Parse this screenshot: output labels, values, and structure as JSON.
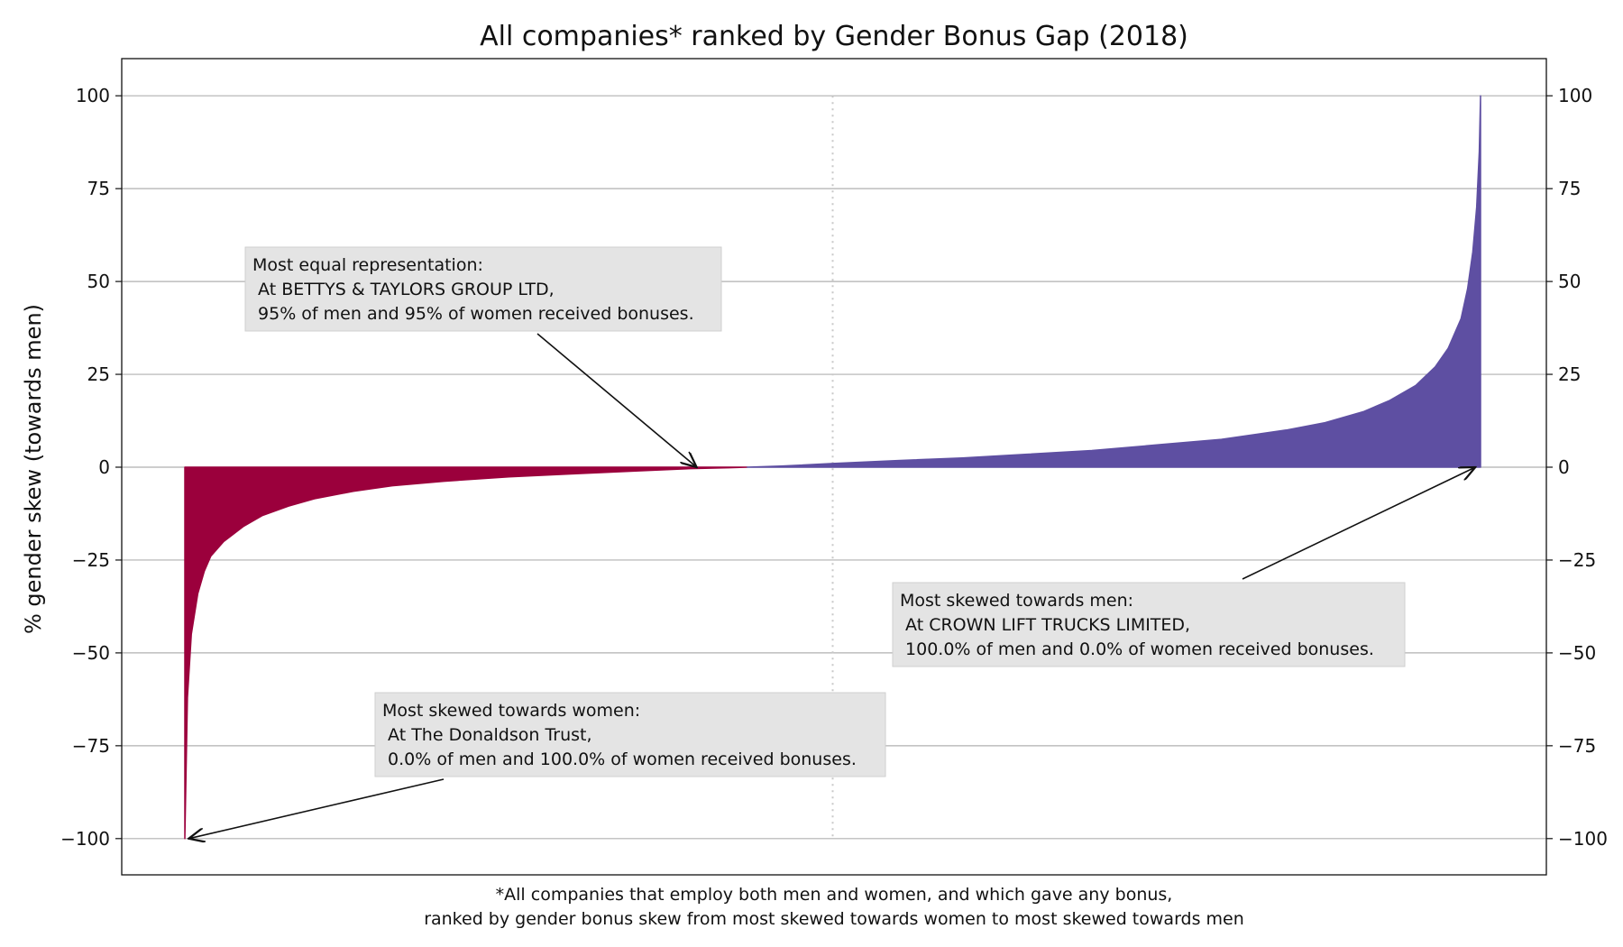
{
  "chart_data": {
    "type": "bar",
    "title": "All companies* ranked by Gender Bonus Gap (2018)",
    "ylabel": "% gender skew (towards men)",
    "xlabel": "",
    "footnote_lines": [
      "*All companies that employ both men and women, and which gave any bonus,",
      "ranked by gender bonus skew from most skewed towards women to most skewed towards men"
    ],
    "ylim": [
      -110,
      110
    ],
    "yticks": [
      100,
      75,
      50,
      25,
      0,
      -25,
      -50,
      -75,
      -100
    ],
    "ytick_labels": [
      "100",
      "75",
      "50",
      "25",
      "0",
      "−25",
      "−50",
      "−75",
      "−100"
    ],
    "ytick_labels_right": [
      "100",
      "75",
      "50",
      "25",
      "0",
      "−25",
      "−50",
      "−75",
      "−100"
    ],
    "grid": "horizontal",
    "x_index_range": [
      0,
      1
    ],
    "median_marker_x": 0.5,
    "series": [
      {
        "color": "#9b003c",
        "sign": "negative",
        "points": [
          {
            "x": 0.0,
            "y": -100
          },
          {
            "x": 0.002,
            "y": -62
          },
          {
            "x": 0.005,
            "y": -45
          },
          {
            "x": 0.01,
            "y": -34
          },
          {
            "x": 0.015,
            "y": -28
          },
          {
            "x": 0.02,
            "y": -24
          },
          {
            "x": 0.03,
            "y": -20
          },
          {
            "x": 0.045,
            "y": -16
          },
          {
            "x": 0.06,
            "y": -13
          },
          {
            "x": 0.08,
            "y": -10.5
          },
          {
            "x": 0.1,
            "y": -8.5
          },
          {
            "x": 0.13,
            "y": -6.5
          },
          {
            "x": 0.16,
            "y": -5
          },
          {
            "x": 0.2,
            "y": -3.8
          },
          {
            "x": 0.25,
            "y": -2.6
          },
          {
            "x": 0.3,
            "y": -1.8
          },
          {
            "x": 0.35,
            "y": -1.0
          },
          {
            "x": 0.39,
            "y": -0.4
          },
          {
            "x": 0.42,
            "y": -0.15
          },
          {
            "x": 0.434,
            "y": 0
          }
        ]
      },
      {
        "color": "#5e4fa2",
        "sign": "positive",
        "points": [
          {
            "x": 0.434,
            "y": 0
          },
          {
            "x": 0.46,
            "y": 0.3
          },
          {
            "x": 0.5,
            "y": 1
          },
          {
            "x": 0.55,
            "y": 1.8
          },
          {
            "x": 0.6,
            "y": 2.5
          },
          {
            "x": 0.65,
            "y": 3.5
          },
          {
            "x": 0.7,
            "y": 4.5
          },
          {
            "x": 0.75,
            "y": 6
          },
          {
            "x": 0.8,
            "y": 7.5
          },
          {
            "x": 0.85,
            "y": 10
          },
          {
            "x": 0.88,
            "y": 12
          },
          {
            "x": 0.91,
            "y": 15
          },
          {
            "x": 0.93,
            "y": 18
          },
          {
            "x": 0.95,
            "y": 22
          },
          {
            "x": 0.965,
            "y": 27
          },
          {
            "x": 0.975,
            "y": 32
          },
          {
            "x": 0.985,
            "y": 40
          },
          {
            "x": 0.99,
            "y": 48
          },
          {
            "x": 0.994,
            "y": 58
          },
          {
            "x": 0.997,
            "y": 70
          },
          {
            "x": 0.999,
            "y": 85
          },
          {
            "x": 1.0,
            "y": 100
          }
        ]
      }
    ],
    "annotations": [
      {
        "lines": [
          "Most equal representation:",
          " At BETTYS & TAYLORS GROUP LTD,",
          " 95% of men and 95% of women received bonuses."
        ],
        "point": {
          "x": 0.395,
          "y": 0
        }
      },
      {
        "lines": [
          "Most skewed towards men:",
          " At CROWN LIFT TRUCKS LIMITED,",
          " 100.0% of men and 0.0% of women received bonuses."
        ],
        "point": {
          "x": 0.996,
          "y": 0
        }
      },
      {
        "lines": [
          "Most skewed towards women:",
          " At The Donaldson Trust,",
          " 0.0% of men and 100.0% of women received bonuses."
        ],
        "point": {
          "x": 0.003,
          "y": -100
        }
      }
    ],
    "colors": {
      "women_skew": "#9b003c",
      "men_skew": "#5e4fa2",
      "grid": "#b0b0b0",
      "annotation_box": "#e4e4e4",
      "median_line": "#c8c8c8"
    }
  }
}
